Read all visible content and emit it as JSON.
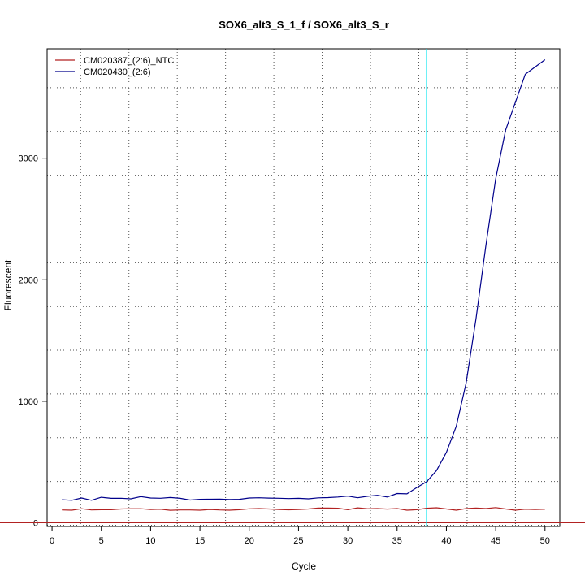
{
  "chart_data": {
    "type": "line",
    "title": "SOX6_alt3_S_1_f / SOX6_alt3_S_r",
    "xlabel": "Cycle",
    "ylabel": "Fluorescent",
    "xlim": [
      -0.5,
      51.5
    ],
    "ylim": [
      -30,
      3900
    ],
    "x_ticks": [
      0,
      5,
      10,
      15,
      20,
      25,
      30,
      35,
      40,
      45,
      50
    ],
    "y_ticks": [
      0,
      1000,
      2000,
      3000
    ],
    "grid": true,
    "grid_x": [
      2.9,
      7.8,
      12.7,
      17.6,
      22.5,
      27.4,
      32.3,
      37.2,
      42.1,
      47.0
    ],
    "grid_y": [
      -20,
      340,
      700,
      1060,
      1420,
      1780,
      2140,
      2500,
      2860,
      3220,
      3580
    ],
    "legend_position": "top-left",
    "threshold_line": 0,
    "cycle_marker_line": 38,
    "colors": {
      "threshold": "#b22222",
      "cycle_marker": "#00e5ee",
      "grid": "#555555"
    },
    "series": [
      {
        "name": "CM020387_(2:6)_NTC",
        "color": "#b22222",
        "x": [
          1,
          2,
          3,
          4,
          5,
          6,
          7,
          8,
          9,
          10,
          11,
          12,
          13,
          14,
          15,
          16,
          17,
          18,
          19,
          20,
          21,
          22,
          23,
          24,
          25,
          26,
          27,
          28,
          29,
          30,
          31,
          32,
          33,
          34,
          35,
          36,
          37,
          38,
          39,
          40,
          41,
          42,
          43,
          44,
          45,
          46,
          47,
          48,
          49,
          50
        ],
        "values": [
          106,
          104,
          116,
          106,
          108,
          108,
          114,
          116,
          116,
          110,
          112,
          103,
          106,
          106,
          104,
          110,
          106,
          104,
          108,
          115,
          117,
          114,
          110,
          107,
          110,
          114,
          121,
          122,
          120,
          108,
          123,
          116,
          117,
          113,
          117,
          104,
          108,
          120,
          124,
          114,
          104,
          117,
          121,
          117,
          125,
          114,
          104,
          112,
          110,
          112
        ]
      },
      {
        "name": "CM020430_(2:6)",
        "color": "#00008b",
        "x": [
          1,
          2,
          3,
          4,
          5,
          6,
          7,
          8,
          9,
          10,
          11,
          12,
          13,
          14,
          15,
          16,
          17,
          18,
          19,
          20,
          21,
          22,
          23,
          24,
          25,
          26,
          27,
          28,
          29,
          30,
          31,
          32,
          33,
          34,
          35,
          36,
          37,
          38,
          39,
          40,
          41,
          42,
          43,
          44,
          45,
          46,
          47,
          48,
          49,
          50
        ],
        "values": [
          190,
          185,
          204,
          185,
          210,
          201,
          202,
          197,
          215,
          204,
          202,
          208,
          201,
          187,
          193,
          194,
          195,
          192,
          193,
          204,
          206,
          203,
          202,
          199,
          201,
          197,
          205,
          207,
          212,
          219,
          206,
          218,
          226,
          212,
          241,
          238,
          290,
          338,
          430,
          580,
          795,
          1150,
          1680,
          2280,
          2830,
          3230,
          3460,
          3690,
          3750,
          3810
        ]
      }
    ]
  }
}
